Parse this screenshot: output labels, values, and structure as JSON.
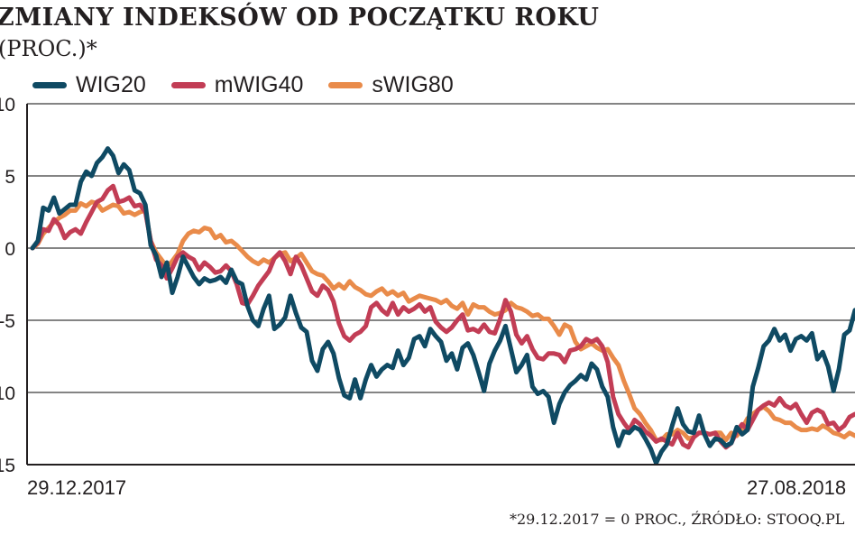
{
  "chart_data": {
    "type": "line",
    "title": "ZMIANY INDEKSÓW OD POCZĄTKU ROKU",
    "subtitle": "(PROC.)*",
    "footnote": "*29.12.2017 = 0 PROC., ŹRÓDŁO: STOOQ.PL",
    "ylim": [
      -15,
      10
    ],
    "yticks": [
      10,
      5,
      0,
      -5,
      -10,
      -15
    ],
    "ytick_labels": [
      "10",
      "5",
      "0",
      "-5",
      "-10",
      "-15"
    ],
    "x_labels": [
      "29.12.2017",
      "27.08.2018"
    ],
    "grid": true,
    "legend": "top-left",
    "colors": {
      "WIG20": "#0f4a63",
      "mWIG40": "#c23d55",
      "sWIG80": "#e98b4a"
    },
    "series": [
      {
        "name": "WIG20",
        "values": [
          0.0,
          0.5,
          2.8,
          2.6,
          3.5,
          2.4,
          2.7,
          3.0,
          3.0,
          4.6,
          5.3,
          5.0,
          5.9,
          6.3,
          6.9,
          6.4,
          5.2,
          5.8,
          5.4,
          4.0,
          3.8,
          3.0,
          0.2,
          -0.5,
          -2.0,
          -1.0,
          -3.1,
          -2.0,
          -0.6,
          -1.3,
          -2.0,
          -2.5,
          -2.1,
          -2.3,
          -2.2,
          -2.0,
          -2.4,
          -1.5,
          -2.3,
          -2.5,
          -4.0,
          -5.0,
          -5.4,
          -4.2,
          -3.3,
          -5.6,
          -5.3,
          -4.8,
          -3.3,
          -4.5,
          -5.5,
          -5.8,
          -7.8,
          -8.5,
          -7.0,
          -6.5,
          -7.3,
          -9.0,
          -10.2,
          -10.4,
          -9.1,
          -10.4,
          -9.1,
          -8.1,
          -8.9,
          -8.4,
          -8.1,
          -8.3,
          -7.1,
          -8.1,
          -7.6,
          -6.3,
          -6.1,
          -6.8,
          -5.6,
          -6.1,
          -6.5,
          -7.8,
          -7.3,
          -8.4,
          -6.9,
          -6.6,
          -7.4,
          -8.6,
          -9.9,
          -8.0,
          -7.1,
          -6.4,
          -5.4,
          -7.0,
          -8.6,
          -8.1,
          -7.4,
          -9.6,
          -10.1,
          -9.9,
          -10.3,
          -12.1,
          -10.8,
          -10.0,
          -9.5,
          -9.2,
          -8.8,
          -9.1,
          -8.0,
          -8.4,
          -9.6,
          -10.3,
          -12.4,
          -13.7,
          -12.7,
          -12.8,
          -12.4,
          -12.6,
          -13.2,
          -13.9,
          -14.9,
          -14.1,
          -13.6,
          -12.3,
          -11.1,
          -12.2,
          -12.7,
          -12.8,
          -11.6,
          -12.9,
          -13.7,
          -13.2,
          -13.3,
          -13.7,
          -13.5,
          -12.4,
          -12.9,
          -12.6,
          -9.6,
          -8.3,
          -6.8,
          -6.4,
          -5.6,
          -6.4,
          -6.0,
          -7.1,
          -6.3,
          -6.1,
          -6.4,
          -5.9,
          -7.7,
          -7.2,
          -8.2,
          -9.9,
          -8.4,
          -6.0,
          -5.7,
          -4.3
        ]
      },
      {
        "name": "mWIG40",
        "values": [
          0.0,
          0.4,
          1.3,
          1.2,
          2.0,
          1.6,
          0.7,
          1.1,
          1.3,
          1.0,
          1.8,
          2.5,
          3.2,
          3.4,
          4.0,
          4.3,
          3.2,
          3.3,
          3.5,
          2.9,
          3.0,
          2.5,
          0.5,
          -0.8,
          -1.2,
          -2.1,
          -1.4,
          -0.6,
          -0.3,
          -0.6,
          -0.8,
          -1.5,
          -1.0,
          -1.3,
          -1.7,
          -1.6,
          -1.2,
          -1.6,
          -2.5,
          -3.8,
          -3.9,
          -3.3,
          -2.6,
          -2.1,
          -1.6,
          -0.7,
          -0.3,
          -0.9,
          -1.8,
          -0.6,
          -1.2,
          -2.1,
          -3.0,
          -3.3,
          -2.6,
          -2.9,
          -3.7,
          -5.2,
          -6.1,
          -6.4,
          -6.0,
          -5.8,
          -5.4,
          -4.1,
          -3.8,
          -4.3,
          -4.6,
          -3.8,
          -4.6,
          -4.1,
          -4.4,
          -4.2,
          -3.9,
          -4.4,
          -4.1,
          -5.1,
          -5.5,
          -5.8,
          -5.5,
          -5.0,
          -4.6,
          -5.7,
          -5.6,
          -5.8,
          -5.3,
          -5.8,
          -5.9,
          -4.9,
          -3.6,
          -4.4,
          -6.0,
          -6.6,
          -6.1,
          -7.0,
          -7.6,
          -7.7,
          -7.3,
          -7.3,
          -7.4,
          -7.9,
          -7.1,
          -7.0,
          -6.8,
          -6.3,
          -6.5,
          -6.3,
          -6.8,
          -7.9,
          -10.3,
          -11.5,
          -12.1,
          -12.6,
          -11.9,
          -12.2,
          -12.7,
          -13.0,
          -13.4,
          -13.2,
          -13.4,
          -13.6,
          -12.8,
          -13.6,
          -13.8,
          -13.1,
          -12.8,
          -12.8,
          -12.9,
          -12.8,
          -13.4,
          -13.8,
          -13.5,
          -12.7,
          -12.2,
          -12.6,
          -11.9,
          -11.2,
          -10.9,
          -10.7,
          -10.9,
          -10.4,
          -10.9,
          -11.1,
          -10.8,
          -11.5,
          -12.1,
          -11.4,
          -11.2,
          -11.4,
          -12.2,
          -12.1,
          -12.6,
          -12.3,
          -11.7,
          -11.5
        ]
      },
      {
        "name": "sWIG80",
        "values": [
          0.0,
          0.3,
          1.0,
          1.4,
          1.8,
          2.1,
          2.3,
          2.6,
          2.6,
          3.1,
          2.9,
          3.2,
          3.1,
          2.6,
          2.8,
          3.0,
          2.9,
          2.4,
          2.5,
          2.3,
          2.5,
          2.6,
          0.5,
          -0.3,
          -0.8,
          -1.3,
          -0.9,
          -0.4,
          0.5,
          1.0,
          1.2,
          1.1,
          1.4,
          1.3,
          0.7,
          0.9,
          0.4,
          0.5,
          0.2,
          -0.2,
          -0.6,
          -0.9,
          -1.1,
          -0.8,
          -1.0,
          -0.7,
          -0.4,
          -0.3,
          -0.9,
          -0.7,
          -0.4,
          -1.0,
          -1.6,
          -1.8,
          -1.9,
          -2.3,
          -2.8,
          -2.5,
          -2.8,
          -2.3,
          -2.7,
          -2.9,
          -3.2,
          -3.3,
          -3.0,
          -2.8,
          -3.2,
          -3.0,
          -3.3,
          -3.1,
          -3.7,
          -3.5,
          -3.3,
          -3.4,
          -3.5,
          -3.6,
          -3.8,
          -3.6,
          -4.0,
          -4.2,
          -3.8,
          -4.6,
          -3.9,
          -4.1,
          -4.1,
          -4.4,
          -4.6,
          -4.5,
          -4.3,
          -3.8,
          -4.1,
          -4.2,
          -4.4,
          -4.7,
          -4.6,
          -4.9,
          -4.9,
          -5.4,
          -6.0,
          -5.3,
          -5.5,
          -6.5,
          -7.0,
          -6.8,
          -6.6,
          -6.9,
          -7.1,
          -7.0,
          -7.6,
          -8.1,
          -9.2,
          -10.1,
          -11.1,
          -11.5,
          -12.1,
          -12.6,
          -13.3,
          -13.3,
          -12.9,
          -12.9,
          -12.6,
          -12.8,
          -13.2,
          -13.1,
          -12.8,
          -12.8,
          -12.9,
          -12.8,
          -12.8,
          -13.3,
          -12.8,
          -13.0,
          -12.5,
          -11.8,
          -11.5,
          -11.2,
          -11.0,
          -11.3,
          -11.8,
          -11.9,
          -12.1,
          -12.1,
          -12.4,
          -12.6,
          -12.6,
          -12.5,
          -12.6,
          -12.3,
          -12.5,
          -12.8,
          -12.9,
          -13.1,
          -12.8,
          -13.0
        ]
      }
    ]
  }
}
